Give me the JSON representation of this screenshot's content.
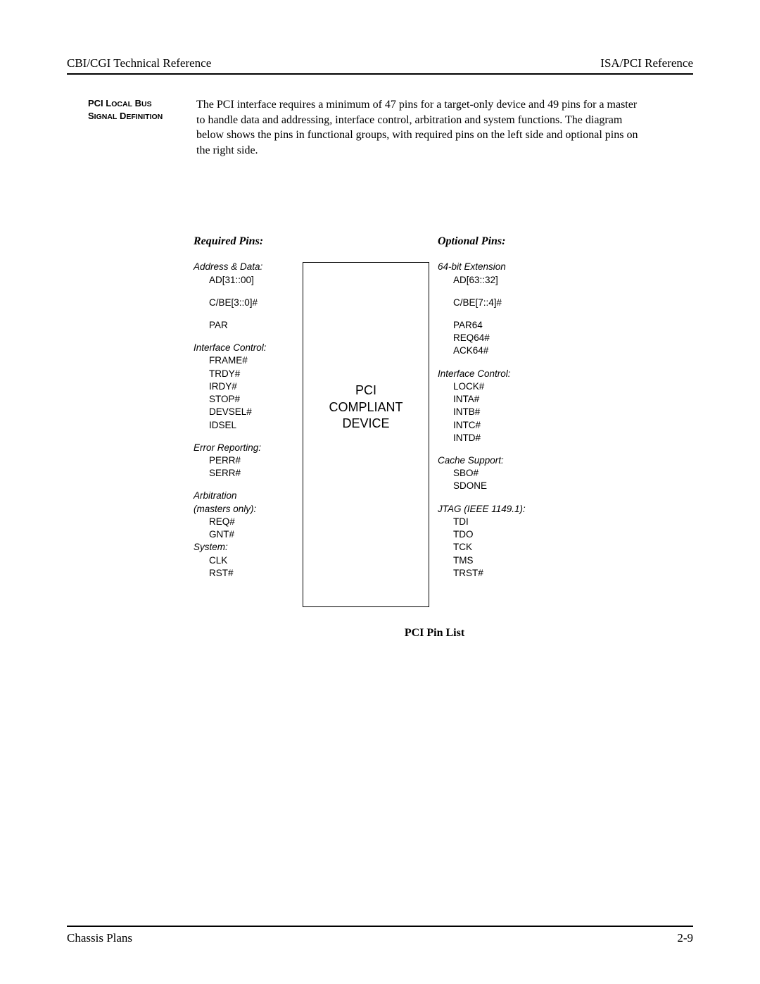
{
  "header": {
    "left": "CBI/CGI Technical Reference",
    "right": "ISA/PCI Reference"
  },
  "section": {
    "title_line1_a": "PCI L",
    "title_line1_b": "OCAL",
    "title_line1_c": " B",
    "title_line1_d": "US",
    "title_line2_a": "S",
    "title_line2_b": "IGNAL",
    "title_line2_c": " D",
    "title_line2_d": "EFINITION",
    "body": "The PCI interface requires a minimum of 47 pins for a target-only device and 49 pins for a master to handle data and addressing, interface control, arbitration and system functions. The diagram below shows the pins in functional groups, with required pins on the left side and optional pins on the right side."
  },
  "diagram": {
    "left_heading": "Required Pins:",
    "right_heading": "Optional Pins:",
    "center_line1": "PCI",
    "center_line2": "COMPLIANT",
    "center_line3": "DEVICE",
    "left": {
      "g1_title": "Address & Data:",
      "g1_p1": "AD[31::00]",
      "g1_p2": "C/BE[3::0]#",
      "g1_p3": "PAR",
      "g2_title": "Interface Control:",
      "g2_p1": "FRAME#",
      "g2_p2": "TRDY#",
      "g2_p3": "IRDY#",
      "g2_p4": "STOP#",
      "g2_p5": "DEVSEL#",
      "g2_p6": "IDSEL",
      "g3_title": "Error Reporting:",
      "g3_p1": "PERR#",
      "g3_p2": "SERR#",
      "g4_title1": "Arbitration",
      "g4_title2": "(masters only):",
      "g4_p1": "REQ#",
      "g4_p2": "GNT#",
      "g5_title": "System:",
      "g5_p1": "CLK",
      "g5_p2": "RST#"
    },
    "right": {
      "g1_title": "64-bit Extension",
      "g1_p1": "AD[63::32]",
      "g1_p2": "C/BE[7::4]#",
      "g1_p3": "PAR64",
      "g1_p4": "REQ64#",
      "g1_p5": "ACK64#",
      "g2_title": "Interface Control:",
      "g2_p1": "LOCK#",
      "g2_p2": "INTA#",
      "g2_p3": "INTB#",
      "g2_p4": "INTC#",
      "g2_p5": "INTD#",
      "g3_title": "Cache Support:",
      "g3_p1": "SBO#",
      "g3_p2": "SDONE",
      "g4_title": "JTAG (IEEE 1149.1):",
      "g4_p1": "TDI",
      "g4_p2": "TDO",
      "g4_p3": "TCK",
      "g4_p4": "TMS",
      "g4_p5": "TRST#"
    },
    "caption": "PCI Pin List"
  },
  "footer": {
    "left": "Chassis Plans",
    "right": "2-9"
  }
}
